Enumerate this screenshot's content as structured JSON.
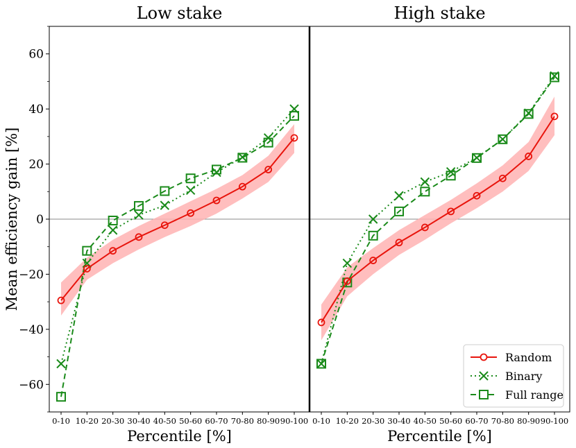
{
  "chart_data": {
    "type": "line",
    "ylabel": "Mean efficiency gain [%]",
    "xlabel": "Percentile [%]",
    "categories": [
      "0-10",
      "10-20",
      "20-30",
      "30-40",
      "40-50",
      "50-60",
      "60-70",
      "70-80",
      "80-90",
      "90-100"
    ],
    "ylim": [
      -70,
      70
    ],
    "yticks": [
      -60,
      -40,
      -20,
      0,
      20,
      40,
      60
    ],
    "ytick_labels": [
      "−60",
      "−40",
      "−20",
      "0",
      "20",
      "40",
      "60"
    ],
    "legend": {
      "position": "lower-right",
      "entries": [
        "Random",
        "Binary",
        "Full range"
      ]
    },
    "colors": {
      "random": "#e8140c",
      "band": "#ffb3b3",
      "green": "#1a8a1a",
      "zero_line": "#888888"
    },
    "panels": [
      {
        "title": "Low stake",
        "series": [
          {
            "name": "Random",
            "values": [
              -29.5,
              -18,
              -11.5,
              -6.5,
              -2.2,
              2.2,
              6.8,
              11.8,
              18,
              29.5
            ],
            "band_low": [
              -35,
              -22,
              -16,
              -11,
              -6.5,
              -2.5,
              2,
              7.5,
              13.5,
              24
            ],
            "band_high": [
              -23,
              -14,
              -7.5,
              -2.5,
              2,
              6.5,
              11,
              16,
              23,
              34.5
            ]
          },
          {
            "name": "Binary",
            "values": [
              -52.5,
              -16,
              -4,
              1.5,
              5,
              10.5,
              17,
              22.5,
              29.5,
              40
            ]
          },
          {
            "name": "Full range",
            "values": [
              -64.5,
              -11.5,
              -0.5,
              4.8,
              10.2,
              14.8,
              18,
              22.3,
              27.8,
              37.5
            ]
          }
        ]
      },
      {
        "title": "High stake",
        "series": [
          {
            "name": "Random",
            "values": [
              -37.5,
              -22.5,
              -15,
              -8.5,
              -3,
              2.8,
              8.5,
              14.8,
              22.8,
              37.3
            ],
            "band_low": [
              -44,
              -28,
              -20,
              -13,
              -7.5,
              -1.5,
              4,
              10,
              17.5,
              30.5
            ],
            "band_high": [
              -31,
              -17.5,
              -10.5,
              -4,
              1.5,
              7,
              13,
              19.5,
              28,
              44.5
            ]
          },
          {
            "name": "Binary",
            "values": [
              -52.5,
              -16,
              0,
              8.5,
              13.5,
              17.2,
              22.3,
              29,
              38.5,
              52
            ]
          },
          {
            "name": "Full range",
            "values": [
              -52.5,
              -23,
              -6,
              2.8,
              10,
              15.8,
              22.2,
              29,
              38.2,
              51.5
            ]
          }
        ]
      }
    ]
  }
}
